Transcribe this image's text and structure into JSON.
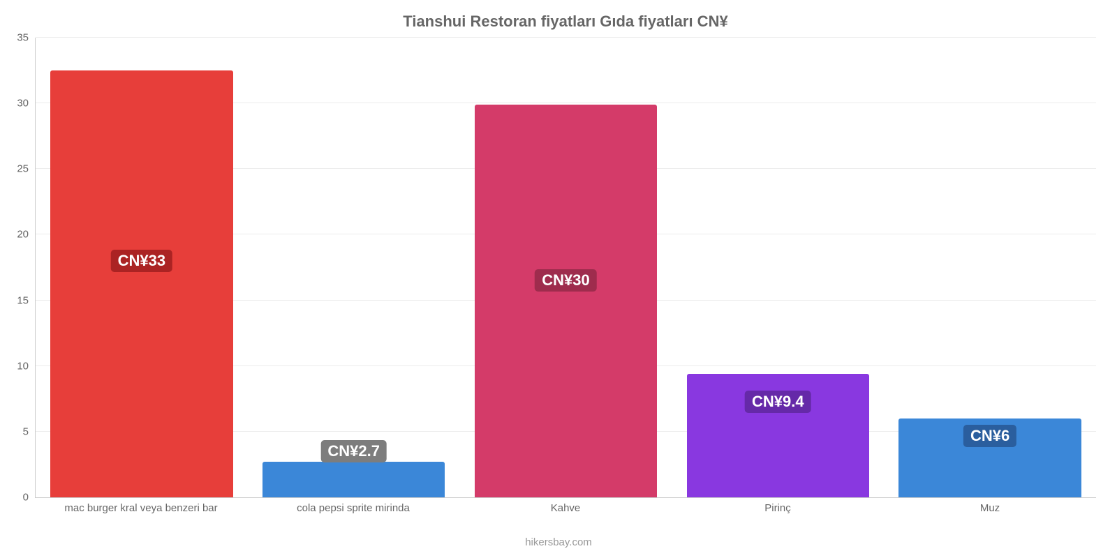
{
  "chart": {
    "type": "bar",
    "title": "Tianshui Restoran fiyatları Gıda fiyatları CN¥",
    "title_fontsize": 22,
    "title_color": "#666666",
    "background_color": "#ffffff",
    "grid_color": "#ececec",
    "axis_color": "#cccccc",
    "text_color": "#666666",
    "footer": "hikersbay.com",
    "footer_color": "#999999",
    "footer_fontsize": 15,
    "ylim": [
      0,
      35
    ],
    "ytick_step": 5,
    "yticks": [
      "0",
      "5",
      "10",
      "15",
      "20",
      "25",
      "30",
      "35"
    ],
    "tick_fontsize": 15,
    "xlabel_fontsize": 15,
    "badge_fontsize": 22,
    "bar_width_pct": 86,
    "bars": [
      {
        "category": "mac burger kral veya benzeri bar",
        "value": 32.5,
        "label": "CN¥33",
        "bar_color": "#e73e3a",
        "badge_bg": "#ab2323",
        "badge_y": 18
      },
      {
        "category": "cola pepsi sprite mirinda",
        "value": 2.7,
        "label": "CN¥2.7",
        "bar_color": "#3b87d8",
        "badge_bg": "#7d7d7d",
        "badge_y": 3.5
      },
      {
        "category": "Kahve",
        "value": 29.9,
        "label": "CN¥30",
        "bar_color": "#d43b69",
        "badge_bg": "#9e2c4d",
        "badge_y": 16.5
      },
      {
        "category": "Pirinç",
        "value": 9.4,
        "label": "CN¥9.4",
        "bar_color": "#8938e0",
        "badge_bg": "#6529a8",
        "badge_y": 7.3
      },
      {
        "category": "Muz",
        "value": 6.0,
        "label": "CN¥6",
        "bar_color": "#3b87d8",
        "badge_bg": "#2a5e9e",
        "badge_y": 4.7
      }
    ]
  }
}
